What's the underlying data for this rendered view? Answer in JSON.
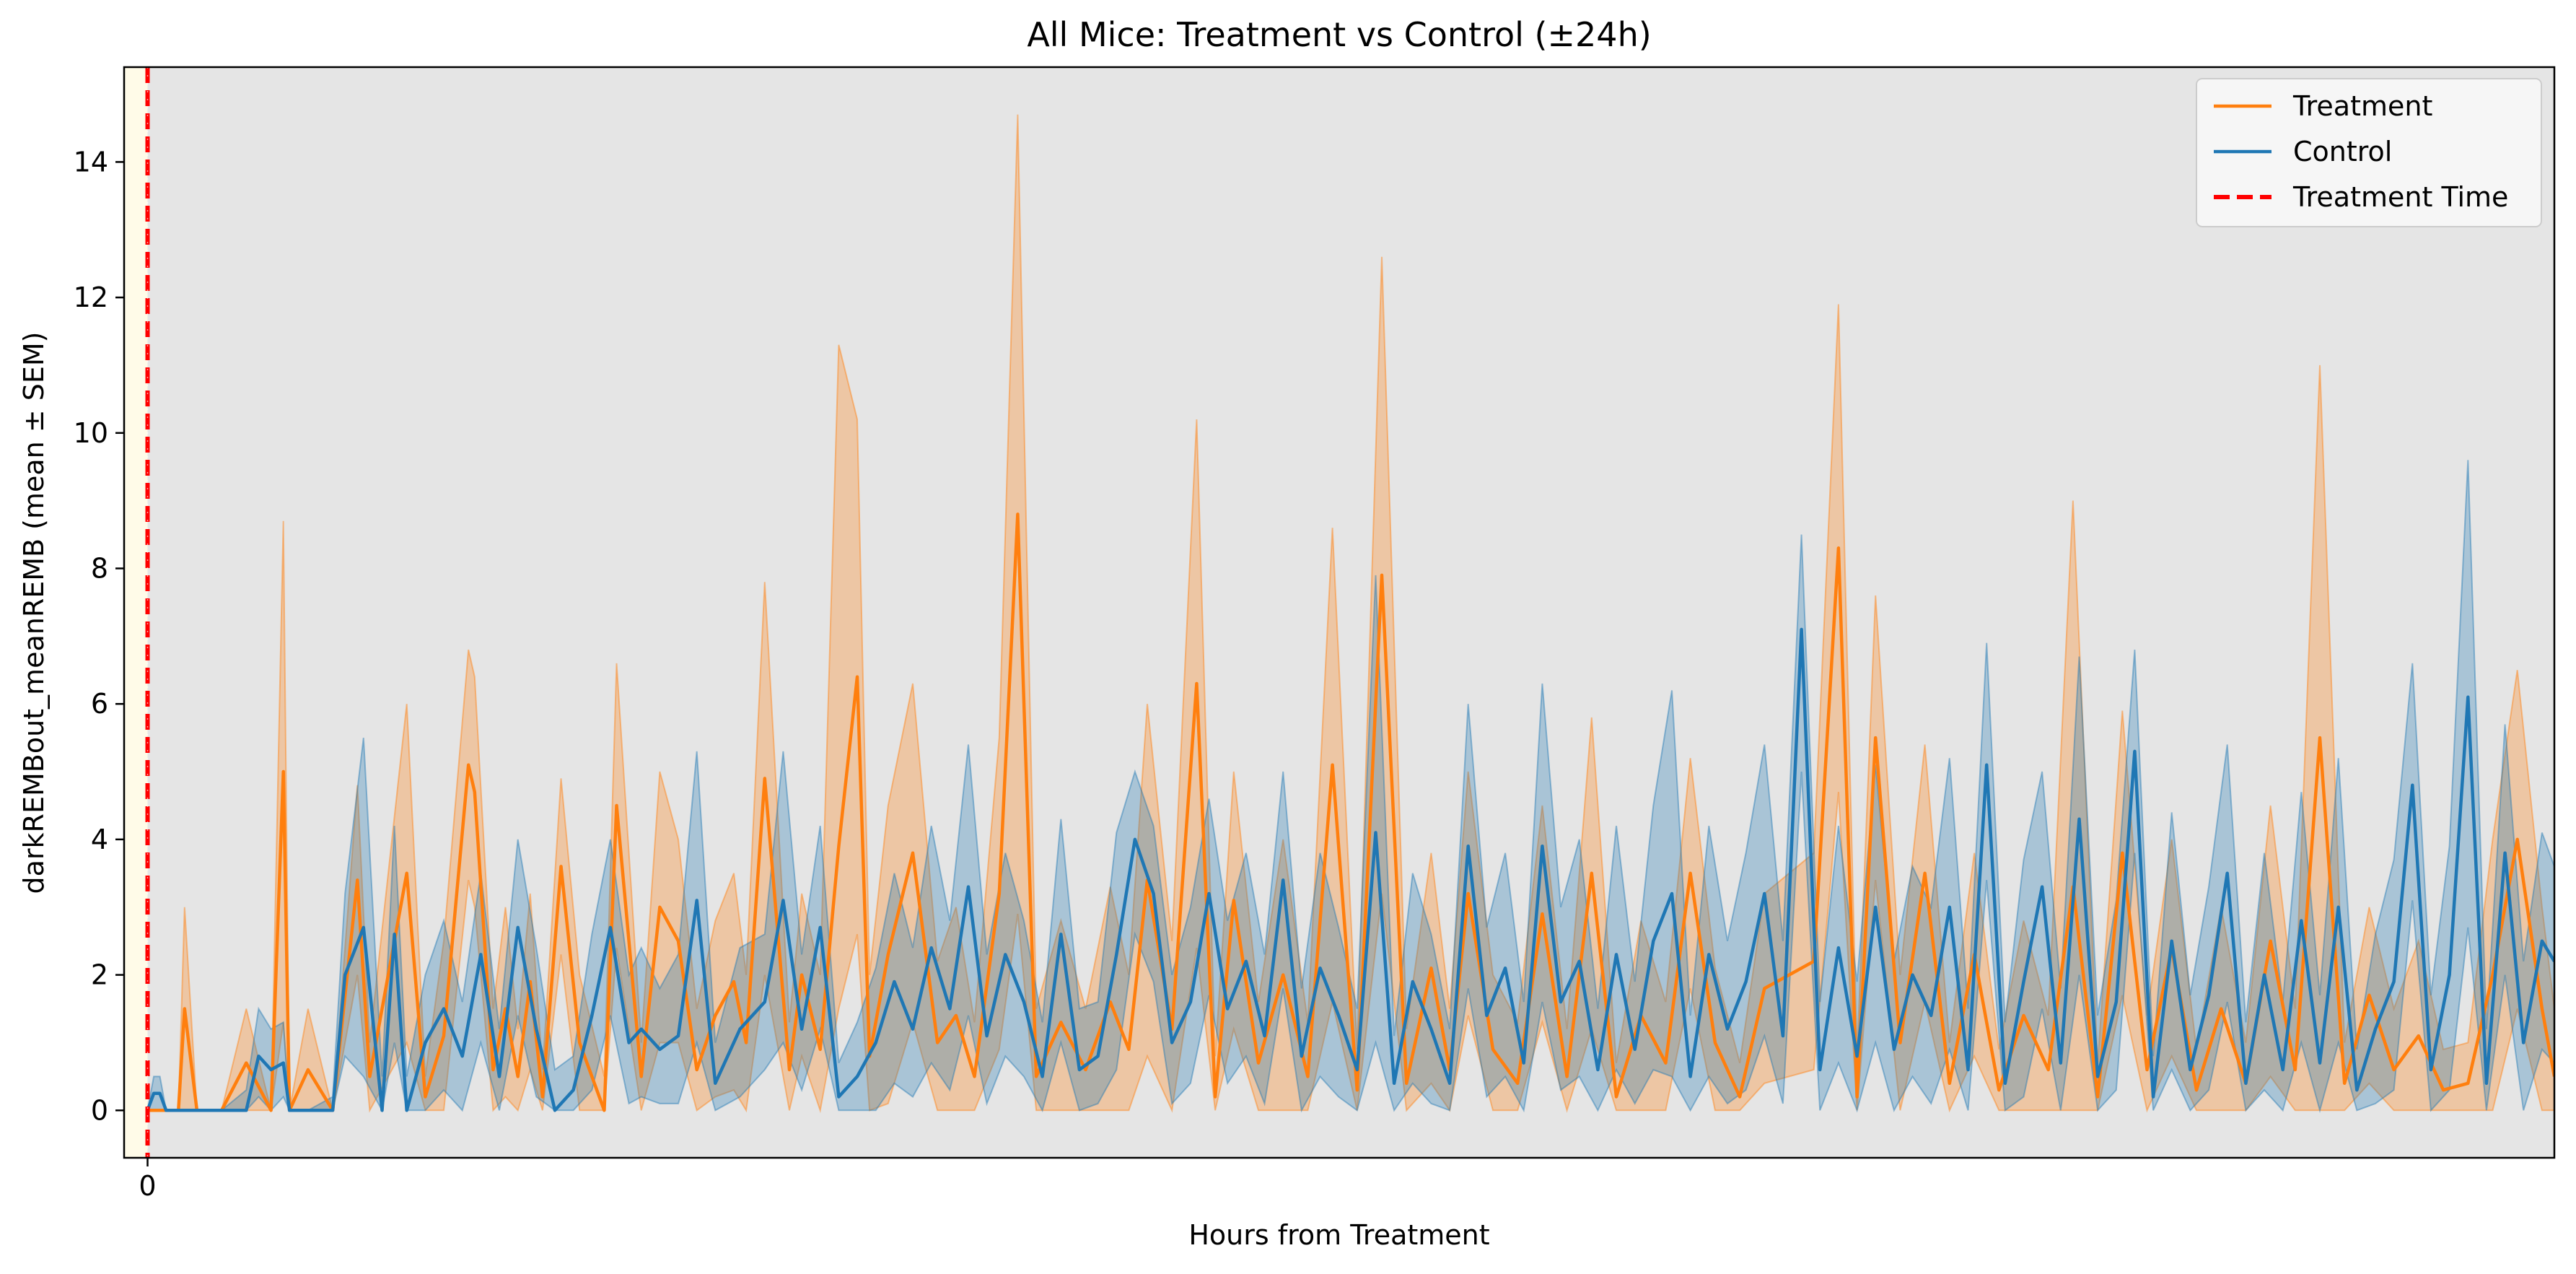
{
  "chart_data": {
    "type": "line",
    "title": "All Mice: Treatment vs Control (±24h)",
    "xlabel": "Hours from Treatment",
    "ylabel": "darkREMBout_meanREMB (mean ± SEM)",
    "xlim": [
      -0.19,
      19.5
    ],
    "ylim": [
      -0.7,
      15.4
    ],
    "xticks": [
      0
    ],
    "xtick_labels": [
      "0"
    ],
    "yticks": [
      0,
      2,
      4,
      6,
      8,
      10,
      12,
      14
    ],
    "ytick_labels": [
      "0",
      "2",
      "4",
      "6",
      "8",
      "10",
      "12",
      "14"
    ],
    "grid": false,
    "legend_position": "upper right",
    "treatment_time": 0,
    "pre_treatment_shade": [
      -0.19,
      0
    ],
    "colors": {
      "treatment": "#ff7f0e",
      "control": "#1f77b4",
      "treatment_time": "#ff0000",
      "plot_background": "#e5e5e5",
      "pre_treatment_background": "#fffbe8"
    },
    "series": [
      {
        "name": "Treatment",
        "style": "solid",
        "x": [
          0,
          0.2,
          0.25,
          0.3,
          0.4,
          0.5,
          0.6,
          0.8,
          1.0,
          1.1,
          1.15,
          1.3,
          1.5,
          1.7,
          1.8,
          2.1,
          2.25,
          2.4,
          2.6,
          2.65,
          2.8,
          2.9,
          3.0,
          3.1,
          3.2,
          3.35,
          3.5,
          3.7,
          3.8,
          4.0,
          4.15,
          4.3,
          4.45,
          4.6,
          4.75,
          4.85,
          5.0,
          5.2,
          5.3,
          5.45,
          5.6,
          5.75,
          5.85,
          6.0,
          6.2,
          6.4,
          6.55,
          6.7,
          6.9,
          7.05,
          7.2,
          7.4,
          7.6,
          7.8,
          7.95,
          8.1,
          8.3,
          8.5,
          8.65,
          8.8,
          9.0,
          9.2,
          9.4,
          9.6,
          9.8,
          10.0,
          10.2,
          10.4,
          10.55,
          10.7,
          10.9,
          11.1,
          11.3,
          11.5,
          11.7,
          11.9,
          12.1,
          12.3,
          12.5,
          12.7,
          12.9,
          13.1,
          13.3,
          13.5,
          13.7,
          13.85,
          14.0,
          14.2,
          14.4,
          14.6,
          14.8,
          15.0,
          15.2,
          15.4,
          15.6,
          15.8,
          16.0,
          16.2,
          16.4,
          16.6,
          16.8,
          17.0,
          17.2,
          17.4,
          17.6,
          17.8,
          18.0,
          18.2,
          18.4,
          18.6,
          18.8,
          19.0,
          19.2,
          19.4,
          19.5
        ],
        "mean": [
          0,
          0,
          0,
          1.5,
          0,
          0,
          0,
          0.7,
          0,
          5.0,
          0,
          0.6,
          0,
          3.4,
          0.5,
          3.5,
          0.2,
          1.1,
          5.1,
          4.7,
          0.6,
          1.5,
          0.5,
          1.9,
          0.2,
          3.6,
          1.0,
          0,
          4.5,
          0.5,
          3.0,
          2.5,
          0.6,
          1.4,
          1.9,
          1.0,
          4.9,
          0.6,
          2.0,
          0.9,
          3.9,
          6.4,
          0.8,
          2.3,
          3.8,
          1.0,
          1.4,
          0.5,
          3.2,
          8.8,
          0.5,
          1.3,
          0.6,
          1.6,
          0.9,
          3.4,
          1.2,
          6.3,
          0.2,
          3.1,
          0.7,
          2.0,
          0.5,
          5.1,
          0.3,
          7.9,
          0.4,
          2.1,
          0.6,
          3.2,
          0.9,
          0.4,
          2.9,
          0.5,
          3.5,
          0.2,
          1.4,
          0.7,
          3.5,
          1.0,
          0.2,
          1.8,
          2.0,
          2.2,
          8.3,
          0.2,
          5.5,
          1.0,
          3.5,
          0.4,
          2.3,
          0.3,
          1.4,
          0.6,
          3.3,
          0.2,
          3.8,
          0.6,
          2.4,
          0.3,
          1.5,
          0.4,
          2.5,
          0.6,
          5.5,
          0.4,
          1.7,
          0.6,
          1.1,
          0.3,
          0.4,
          2.0,
          4.0,
          1.5,
          0.5
        ],
        "sem_upper": [
          0,
          0,
          0,
          3.0,
          0,
          0,
          0,
          1.5,
          0,
          8.7,
          0,
          1.5,
          0,
          4.8,
          1.0,
          6.0,
          0.5,
          2.5,
          6.8,
          6.4,
          1.5,
          3.0,
          1.2,
          3.2,
          0.6,
          4.9,
          2.0,
          0.5,
          6.6,
          1.0,
          5.0,
          4.0,
          1.5,
          2.8,
          3.5,
          2.0,
          7.8,
          1.3,
          3.2,
          2.0,
          11.3,
          10.2,
          2.0,
          4.5,
          6.3,
          2.2,
          3.0,
          1.3,
          5.5,
          14.7,
          1.5,
          2.8,
          1.5,
          3.3,
          2.0,
          6.0,
          2.5,
          10.2,
          0.8,
          5.0,
          1.6,
          4.0,
          1.3,
          8.6,
          0.9,
          12.6,
          1.2,
          3.8,
          1.5,
          5.0,
          2.0,
          1.3,
          4.5,
          1.2,
          5.8,
          0.7,
          2.8,
          1.6,
          5.2,
          2.1,
          0.7,
          3.2,
          3.5,
          3.8,
          11.9,
          0.8,
          7.6,
          2.0,
          5.4,
          1.0,
          3.8,
          0.9,
          2.8,
          1.4,
          9.0,
          0.7,
          5.9,
          1.4,
          4.0,
          0.9,
          3.0,
          1.0,
          4.5,
          1.5,
          11.0,
          1.0,
          3.0,
          1.5,
          2.5,
          0.9,
          1.0,
          4.0,
          6.5,
          3.0,
          1.5
        ],
        "sem_lower": [
          0,
          0,
          0,
          0,
          0,
          0,
          0,
          0,
          0,
          1.3,
          0,
          0,
          0,
          2.0,
          0,
          1.0,
          0,
          0,
          3.4,
          3.0,
          0,
          0.2,
          0,
          0.6,
          0,
          2.3,
          0,
          0,
          2.4,
          0,
          1.0,
          1.0,
          0,
          0.2,
          0.3,
          0,
          2.0,
          0,
          0.8,
          0,
          1.5,
          2.6,
          0,
          0.1,
          1.3,
          0,
          0,
          0,
          0.9,
          2.9,
          0,
          0,
          0,
          0,
          0,
          0.8,
          0,
          2.4,
          0,
          1.2,
          0,
          0,
          0,
          1.6,
          0,
          3.2,
          0,
          0.4,
          0,
          1.4,
          0,
          0,
          1.3,
          0,
          1.2,
          0,
          0,
          0,
          1.8,
          0,
          0,
          0.4,
          0.5,
          0.6,
          4.7,
          0,
          3.4,
          0,
          1.6,
          0,
          0.8,
          0,
          0,
          0,
          0,
          0,
          1.7,
          0,
          0.8,
          0,
          0,
          0,
          0.5,
          0,
          0,
          0,
          0.4,
          0,
          0,
          0,
          0,
          0,
          1.5,
          0,
          0
        ]
      },
      {
        "name": "Control",
        "style": "solid",
        "x": [
          0,
          0.05,
          0.1,
          0.15,
          0.2,
          0.3,
          0.4,
          0.5,
          0.6,
          0.8,
          0.9,
          1.0,
          1.1,
          1.15,
          1.3,
          1.5,
          1.6,
          1.75,
          1.9,
          2.0,
          2.1,
          2.25,
          2.4,
          2.55,
          2.7,
          2.85,
          3.0,
          3.15,
          3.3,
          3.45,
          3.6,
          3.75,
          3.9,
          4.0,
          4.15,
          4.3,
          4.45,
          4.6,
          4.8,
          5.0,
          5.15,
          5.3,
          5.45,
          5.6,
          5.75,
          5.9,
          6.05,
          6.2,
          6.35,
          6.5,
          6.65,
          6.8,
          6.95,
          7.1,
          7.25,
          7.4,
          7.55,
          7.7,
          7.85,
          8.0,
          8.15,
          8.3,
          8.45,
          8.6,
          8.75,
          8.9,
          9.05,
          9.2,
          9.35,
          9.5,
          9.65,
          9.8,
          9.95,
          10.1,
          10.25,
          10.4,
          10.55,
          10.7,
          10.85,
          11.0,
          11.15,
          11.3,
          11.45,
          11.6,
          11.75,
          11.9,
          12.05,
          12.2,
          12.35,
          12.5,
          12.65,
          12.8,
          12.95,
          13.1,
          13.25,
          13.4,
          13.55,
          13.7,
          13.85,
          14.0,
          14.15,
          14.3,
          14.45,
          14.6,
          14.75,
          14.9,
          15.05,
          15.2,
          15.35,
          15.5,
          15.65,
          15.8,
          15.95,
          16.1,
          16.25,
          16.4,
          16.55,
          16.7,
          16.85,
          17.0,
          17.15,
          17.3,
          17.45,
          17.6,
          17.75,
          17.9,
          18.05,
          18.2,
          18.35,
          18.5,
          18.65,
          18.8,
          18.95,
          19.1,
          19.25,
          19.4,
          19.5
        ],
        "mean": [
          0,
          0.25,
          0.25,
          0,
          0,
          0,
          0,
          0,
          0,
          0,
          0.8,
          0.6,
          0.7,
          0,
          0,
          0,
          2.0,
          2.7,
          0,
          2.6,
          0,
          1.0,
          1.5,
          0.8,
          2.3,
          0.5,
          2.7,
          1.2,
          0,
          0.3,
          1.4,
          2.7,
          1.0,
          1.2,
          0.9,
          1.1,
          3.1,
          0.4,
          1.2,
          1.6,
          3.1,
          1.2,
          2.7,
          0.2,
          0.5,
          1.0,
          1.9,
          1.2,
          2.4,
          1.5,
          3.3,
          1.1,
          2.3,
          1.6,
          0.5,
          2.6,
          0.6,
          0.8,
          2.3,
          4.0,
          3.2,
          1.0,
          1.6,
          3.2,
          1.5,
          2.2,
          1.1,
          3.4,
          0.8,
          2.1,
          1.4,
          0.6,
          4.1,
          0.4,
          1.9,
          1.2,
          0.4,
          3.9,
          1.4,
          2.1,
          0.7,
          3.9,
          1.6,
          2.2,
          0.6,
          2.3,
          0.9,
          2.5,
          3.2,
          0.5,
          2.3,
          1.2,
          1.9,
          3.2,
          1.1,
          7.1,
          0.6,
          2.4,
          0.8,
          3.0,
          0.9,
          2.0,
          1.4,
          3.0,
          0.6,
          5.1,
          0.4,
          1.9,
          3.3,
          0.7,
          4.3,
          0.5,
          1.6,
          5.3,
          0.2,
          2.5,
          0.6,
          1.7,
          3.5,
          0.4,
          2.0,
          0.6,
          2.8,
          0.7,
          3.0,
          0.3,
          1.2,
          1.9,
          4.8,
          0.6,
          2.0,
          6.1,
          0.4,
          3.8,
          1.0,
          2.5,
          2.2
        ],
        "sem_upper": [
          0,
          0.5,
          0.5,
          0,
          0,
          0,
          0,
          0,
          0,
          0.3,
          1.5,
          1.2,
          1.3,
          0,
          0,
          0.2,
          3.2,
          5.5,
          0.5,
          4.2,
          0.5,
          2.0,
          2.8,
          1.6,
          3.5,
          1.2,
          4.0,
          2.4,
          0.6,
          0.8,
          2.6,
          4.0,
          2.0,
          2.4,
          1.8,
          2.3,
          5.3,
          1.0,
          2.4,
          2.6,
          5.3,
          2.3,
          4.2,
          0.7,
          1.3,
          2.1,
          3.5,
          2.4,
          4.2,
          2.8,
          5.4,
          2.3,
          3.8,
          2.8,
          1.3,
          4.3,
          1.5,
          1.6,
          4.1,
          5.0,
          4.2,
          2.0,
          3.0,
          4.6,
          2.8,
          3.8,
          2.3,
          5.0,
          1.8,
          3.8,
          2.7,
          1.5,
          7.9,
          1.1,
          3.5,
          2.6,
          1.2,
          6.0,
          2.7,
          3.8,
          1.6,
          6.3,
          3.0,
          4.0,
          1.5,
          4.2,
          1.9,
          4.5,
          6.2,
          1.4,
          4.2,
          2.5,
          3.8,
          5.4,
          2.5,
          8.5,
          1.6,
          4.2,
          1.9,
          5.1,
          2.2,
          3.6,
          3.0,
          5.2,
          1.5,
          6.9,
          1.3,
          3.7,
          5.0,
          1.8,
          6.7,
          1.4,
          3.1,
          6.8,
          0.8,
          4.4,
          1.7,
          3.3,
          5.4,
          1.3,
          3.8,
          1.6,
          4.7,
          1.7,
          5.2,
          0.9,
          2.6,
          3.7,
          6.6,
          1.7,
          3.9,
          9.6,
          1.2,
          5.7,
          2.2,
          4.1,
          3.6
        ],
        "sem_lower": [
          0,
          0,
          0,
          0,
          0,
          0,
          0,
          0,
          0,
          0,
          0.2,
          0,
          0.2,
          0,
          0,
          0,
          0.8,
          0.5,
          0,
          1.0,
          0,
          0,
          0.3,
          0,
          1.0,
          0,
          1.4,
          0.2,
          0,
          0,
          0.3,
          1.4,
          0.1,
          0.2,
          0.1,
          0.1,
          1.0,
          0,
          0.2,
          0.6,
          1.0,
          0.3,
          1.2,
          0,
          0,
          0,
          0.4,
          0.2,
          0.7,
          0.3,
          1.4,
          0.1,
          0.8,
          0.5,
          0,
          1.0,
          0,
          0.1,
          0.6,
          2.6,
          1.9,
          0.1,
          0.4,
          1.7,
          0.4,
          0.8,
          0.1,
          1.8,
          0,
          0.5,
          0.2,
          0,
          1.0,
          0,
          0.4,
          0.1,
          0,
          1.8,
          0.2,
          0.5,
          0,
          1.6,
          0.3,
          0.5,
          0,
          0.6,
          0.1,
          0.6,
          0.5,
          0,
          0.5,
          0.1,
          0.3,
          1.1,
          0.1,
          5.0,
          0,
          0.7,
          0,
          1.0,
          0,
          0.5,
          0.1,
          0.9,
          0,
          3.4,
          0,
          0.2,
          1.5,
          0,
          2.0,
          0,
          0.3,
          3.8,
          0,
          0.6,
          0,
          0.3,
          1.6,
          0,
          0.3,
          0,
          1.0,
          0,
          1.0,
          0,
          0.1,
          0.3,
          3.1,
          0,
          0.3,
          2.7,
          0,
          2.0,
          0,
          0.9,
          0.7
        ]
      },
      {
        "name": "Treatment Time",
        "style": "dashed"
      }
    ]
  }
}
